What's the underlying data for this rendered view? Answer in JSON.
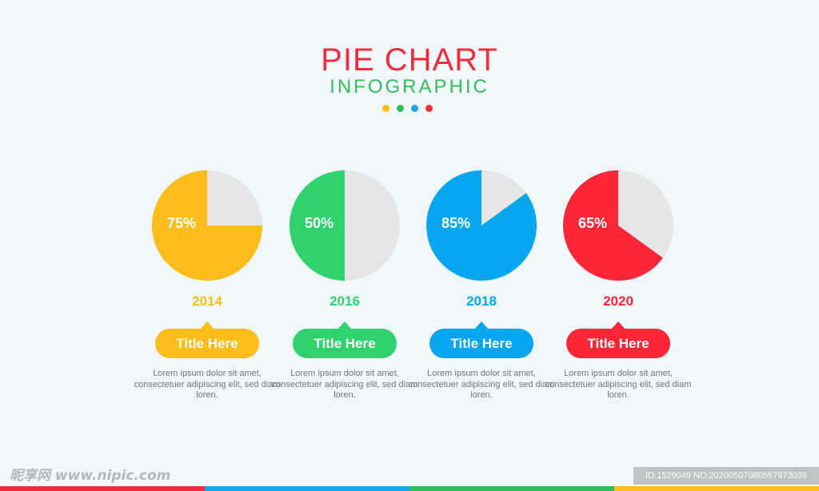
{
  "header": {
    "title": "PIE CHART",
    "subtitle": "INFOGRAPHIC"
  },
  "decor_dots": [
    "#fbbd1a",
    "#2fbf5a",
    "#16a6ea",
    "#ef2d3e"
  ],
  "colors": {
    "pie_remainder": "#e6e6e6",
    "description_text": "#6f757a",
    "background": "#f1f8fb"
  },
  "chart_data": {
    "type": "pie",
    "title": "PIE CHART",
    "subtitle": "INFOGRAPHIC",
    "charts": [
      {
        "year": "2014",
        "value": 75,
        "label": "75%",
        "color": "#fbbd1a",
        "card_title": "Title Here",
        "description": "Lorem ipsum dolor sit amet, consectetuer adipiscing elit, sed diam loren."
      },
      {
        "year": "2016",
        "value": 50,
        "label": "50%",
        "color": "#2fd26d",
        "card_title": "Title Here",
        "description": "Lorem ipsum dolor sit amet, consectetuer adipiscing elit, sed diam loren."
      },
      {
        "year": "2018",
        "value": 85,
        "label": "85%",
        "color": "#06a6ef",
        "card_title": "Title Here",
        "description": "Lorem ipsum dolor sit amet, consectetuer adipiscing elit, sed diam loren."
      },
      {
        "year": "2020",
        "value": 65,
        "label": "65%",
        "color": "#ff2638",
        "card_title": "Title Here",
        "description": "Lorem ipsum dolor sit amet, consectetuer adipiscing elit, sed diam loren."
      }
    ]
  },
  "watermark": {
    "left_text": "昵享网 www.nipic.com",
    "right_text": "ID:1529049 NO:20200507080557973039"
  },
  "bottom_bar_colors": [
    "#ef2d3e",
    "#16a6ea",
    "#2fbf5a",
    "#fbbd1a"
  ]
}
